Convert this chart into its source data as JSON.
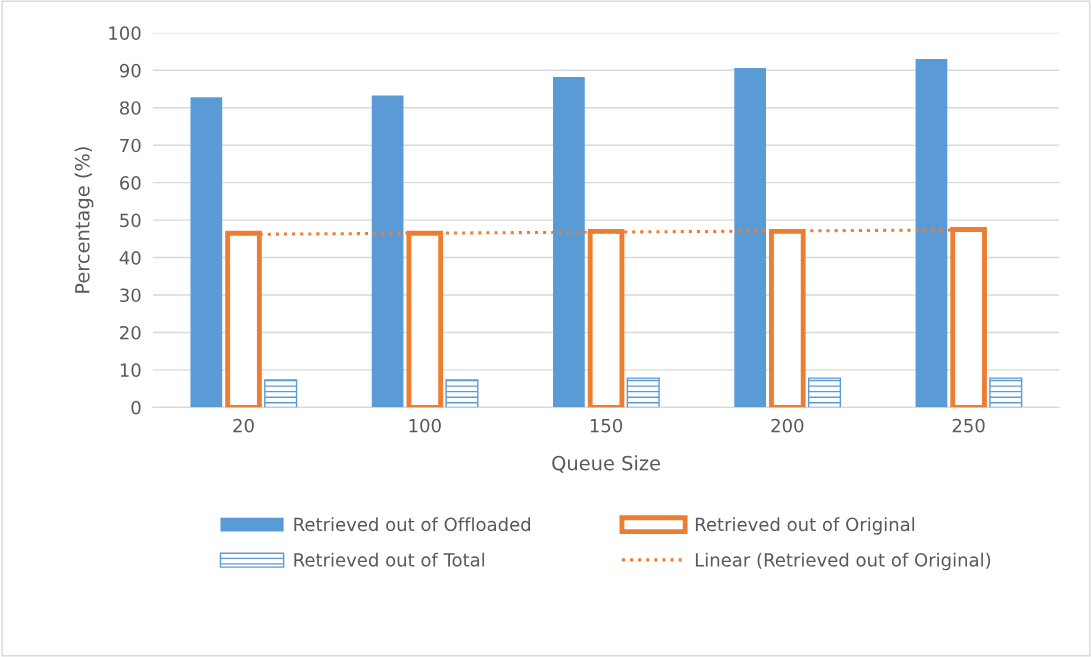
{
  "chart_data": {
    "type": "bar",
    "xlabel": "Queue Size",
    "ylabel": "Percentage (%)",
    "categories": [
      "20",
      "100",
      "150",
      "200",
      "250"
    ],
    "series": [
      {
        "name": "Retrieved out of Offloaded",
        "color": "#5b9bd5",
        "values": [
          82.8,
          83.3,
          88.2,
          90.6,
          93.0
        ]
      },
      {
        "name": "Retrieved out of Original",
        "color": "#ed7d31",
        "values": [
          46.5,
          46.5,
          47.0,
          47.0,
          47.5
        ]
      },
      {
        "name": "Retrieved out of Total",
        "color": "#5b9bd5",
        "values": [
          7.3,
          7.3,
          7.8,
          7.8,
          7.8
        ]
      },
      {
        "name": "Linear (Retrieved out of Original)",
        "type": "line",
        "line_style": "dotted",
        "color": "#ed7d31",
        "values": [
          46.2,
          46.5,
          46.8,
          47.1,
          47.4
        ]
      }
    ],
    "ylim": [
      0,
      100
    ],
    "yticks": [
      0,
      10,
      20,
      30,
      40,
      50,
      60,
      70,
      80,
      90,
      100
    ],
    "grid": "y",
    "legend": "bottom"
  }
}
